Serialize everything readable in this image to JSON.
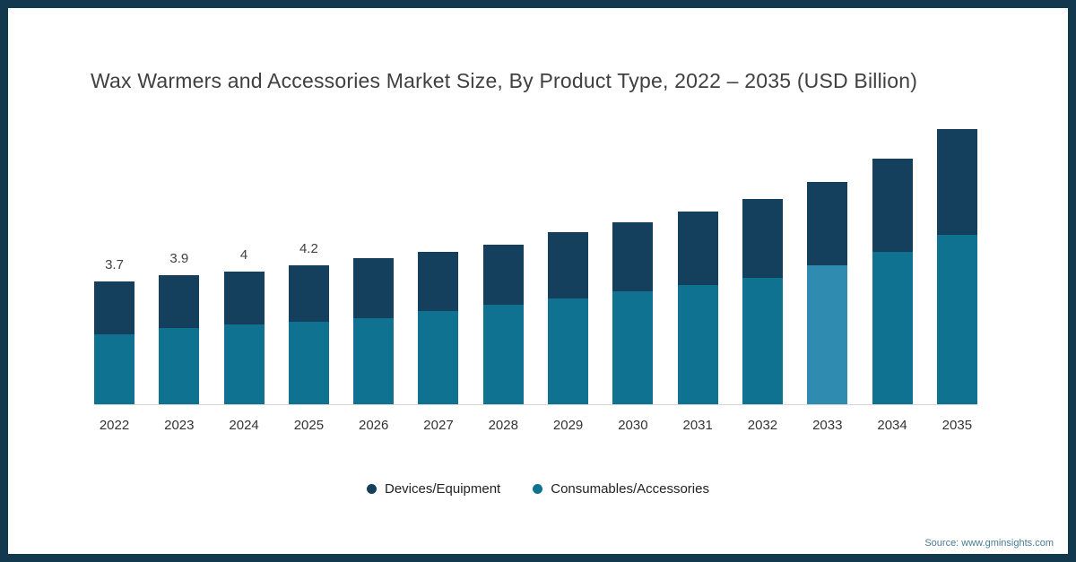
{
  "title": "Wax Warmers and Accessories Market Size, By Product Type, 2022 – 2035 (USD Billion)",
  "source": "Source: www.gminsights.com",
  "colors": {
    "frame": "#12394e",
    "devices": "#14405e",
    "consumables": "#0f7291",
    "consumables_highlight": "#2f8bb0",
    "baseline": "#d6d6d6"
  },
  "legend": [
    {
      "label": "Devices/Equipment",
      "color": "#14405e"
    },
    {
      "label": "Consumables/Accessories",
      "color": "#0f7291"
    }
  ],
  "chart_data": {
    "type": "bar",
    "stacked": true,
    "title": "Wax Warmers and Accessories Market Size, By Product Type, 2022 – 2035 (USD Billion)",
    "xlabel": "",
    "ylabel": "USD Billion",
    "ylim": [
      0,
      9
    ],
    "grid": false,
    "legend_position": "bottom",
    "categories": [
      "2022",
      "2023",
      "2024",
      "2025",
      "2026",
      "2027",
      "2028",
      "2029",
      "2030",
      "2031",
      "2032",
      "2033",
      "2034",
      "2035"
    ],
    "series": [
      {
        "name": "Consumables/Accessories",
        "color": "#0f7291",
        "values": [
          2.1,
          2.3,
          2.4,
          2.5,
          2.6,
          2.8,
          3.0,
          3.2,
          3.4,
          3.6,
          3.8,
          4.2,
          4.6,
          5.1
        ]
      },
      {
        "name": "Devices/Equipment",
        "color": "#14405e",
        "values": [
          1.6,
          1.6,
          1.6,
          1.7,
          1.8,
          1.8,
          1.8,
          2.0,
          2.1,
          2.2,
          2.4,
          2.5,
          2.8,
          3.2
        ]
      }
    ],
    "totals": [
      3.7,
      3.9,
      4.0,
      4.2,
      4.4,
      4.6,
      4.8,
      5.2,
      5.5,
      5.8,
      6.2,
      6.7,
      7.4,
      8.3
    ],
    "bar_labels": [
      "3.7",
      "3.9",
      "4",
      "4.2",
      "",
      "",
      "",
      "",
      "",
      "",
      "",
      "",
      "",
      ""
    ],
    "highlight_index": 11
  }
}
